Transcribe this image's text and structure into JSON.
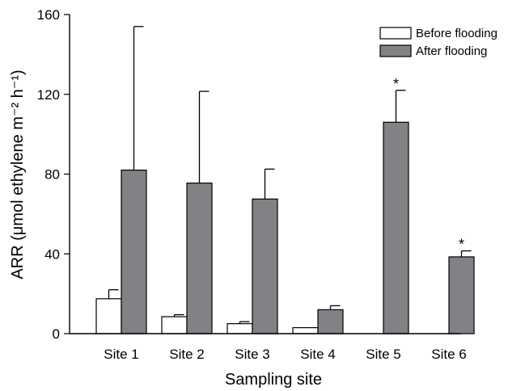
{
  "chart_data": {
    "type": "bar",
    "xlabel": "Sampling site",
    "ylabel": "ARR (μmol ethylene m⁻² h⁻¹)",
    "ylim": [
      0,
      160
    ],
    "yticks": [
      0,
      40,
      80,
      120,
      160
    ],
    "categories": [
      "Site 1",
      "Site 2",
      "Site 3",
      "Site 4",
      "Site 5",
      "Site 6"
    ],
    "legend_position": "top-right",
    "series": [
      {
        "name": "Before flooding",
        "color": "#ffffff",
        "values": [
          17.5,
          8.5,
          5,
          3,
          0,
          0
        ],
        "errors": [
          4.5,
          1,
          1,
          0,
          0,
          0
        ]
      },
      {
        "name": "After flooding",
        "color": "#808285",
        "values": [
          82,
          75.5,
          67.5,
          12,
          106,
          38.5
        ],
        "errors": [
          72,
          46,
          15,
          2,
          16,
          3
        ]
      }
    ],
    "annotations": [
      {
        "category": "Site 5",
        "series": "After flooding",
        "text": "*"
      },
      {
        "category": "Site 6",
        "series": "After flooding",
        "text": "*"
      }
    ]
  }
}
